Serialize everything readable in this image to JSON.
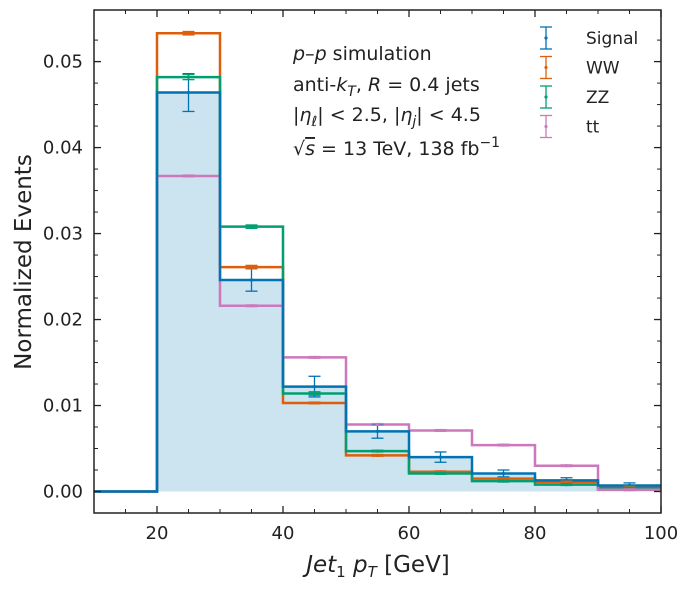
{
  "chart_data": {
    "type": "histogram",
    "xlabel_main": "Jet",
    "xlabel_sub": "1",
    "xlabel_var": "p",
    "xlabel_var_sub": "T",
    "xlabel_unit": "[GeV]",
    "ylabel": "Normalized Events",
    "xlim": [
      10,
      100
    ],
    "ylim": [
      -0.0025,
      0.056
    ],
    "xticks": [
      "20",
      "40",
      "60",
      "80",
      "100"
    ],
    "yticks": [
      "0.00",
      "0.01",
      "0.02",
      "0.03",
      "0.04",
      "0.05"
    ],
    "bin_edges": [
      0,
      20,
      30,
      40,
      50,
      60,
      70,
      80,
      90,
      100
    ],
    "series": [
      {
        "name": "Signal",
        "color": "#0173b2",
        "fill": "#cce3f0",
        "values": [
          0,
          0.0464,
          0.0246,
          0.0122,
          0.007,
          0.004,
          0.0021,
          0.0013,
          0.0007
        ],
        "errors": [
          0,
          0.0022,
          0.0013,
          0.0012,
          0.0008,
          0.0006,
          0.0004,
          0.0003,
          0.0003
        ]
      },
      {
        "name": "WW",
        "color": "#de5f0b",
        "values": [
          0,
          0.0533,
          0.0261,
          0.0103,
          0.0042,
          0.0023,
          0.0015,
          0.0011,
          0.0005
        ],
        "errors": [
          0,
          0.0002,
          0.0002,
          0.0001,
          0.0001,
          0.0001,
          0.0001,
          0.0001,
          0.0001
        ]
      },
      {
        "name": "ZZ",
        "color": "#029e73",
        "values": [
          0,
          0.0482,
          0.0308,
          0.0114,
          0.0047,
          0.0021,
          0.0012,
          0.0008,
          0.0004
        ],
        "errors": [
          0,
          0.0003,
          0.0002,
          0.0002,
          0.0001,
          0.0001,
          0.0001,
          0.0001,
          0.0001
        ]
      },
      {
        "name": "tt",
        "color": "#cc78bc",
        "values": [
          0,
          0.0367,
          0.0216,
          0.0156,
          0.0078,
          0.0071,
          0.0054,
          0.003,
          0.0002
        ],
        "errors": [
          0,
          0.0001,
          0.0001,
          0.0001,
          0.0001,
          0.0001,
          0.0001,
          0.0001,
          0.0001
        ]
      }
    ],
    "annotations": {
      "line1_a": "p",
      "line1_b": "–",
      "line1_c": "p",
      "line1_d": " simulation",
      "line2_a": "anti-",
      "line2_b": "k",
      "line2_c": "T",
      "line2_d": ", ",
      "line2_e": "R",
      "line2_f": " = 0.4 jets",
      "line3_a": "|",
      "line3_b": "η",
      "line3_c": "ℓ",
      "line3_d": "| < 2.5, |",
      "line3_e": "η",
      "line3_f": "j",
      "line3_g": "| < 4.5",
      "line4_a": "√",
      "line4_b": "s",
      "line4_c": " = 13 TeV, 138 fb",
      "line4_d": "−1"
    },
    "legend_position": "upper-right"
  }
}
